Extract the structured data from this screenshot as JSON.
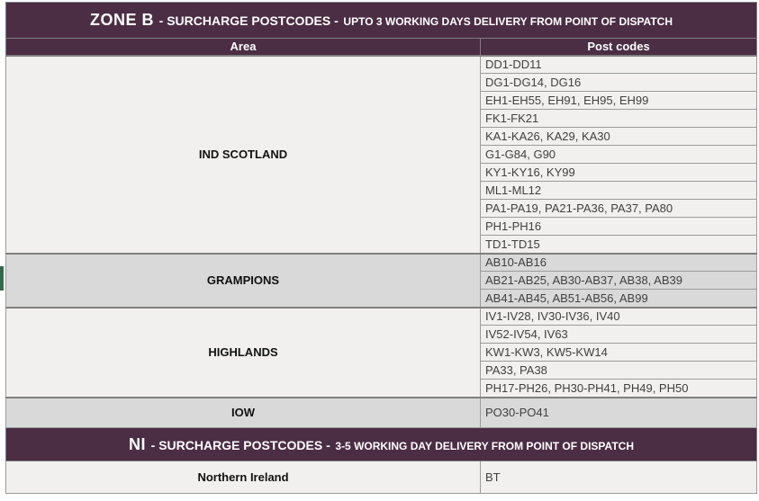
{
  "colors": {
    "header_bg": "#4b2d44",
    "shaded_row": "#d9d9d9",
    "light_row": "#f1f0ee",
    "grid": "#9b9b9b",
    "heavy_grid": "#7f7f7f",
    "green_marker": "#35684b",
    "body_text": "#404040"
  },
  "zone_b": {
    "zone": "ZONE B",
    "title": "- SURCHARGE POSTCODES -",
    "subtitle": "UPTO 3 WORKING DAYS DELIVERY FROM POINT OF DISPATCH",
    "columns": {
      "area": "Area",
      "postcodes": "Post codes"
    },
    "groups": [
      {
        "area": "IND SCOTLAND",
        "rows": [
          "DD1-DD11",
          "DG1-DG14, DG16",
          "EH1-EH55, EH91, EH95, EH99",
          "FK1-FK21",
          "KA1-KA26, KA29, KA30",
          "G1-G84, G90",
          "KY1-KY16, KY99",
          "ML1-ML12",
          "PA1-PA19, PA21-PA36, PA37, PA80",
          "PH1-PH16",
          "TD1-TD15"
        ]
      },
      {
        "area": "GRAMPIONS",
        "rows": [
          "AB10-AB16",
          "AB21-AB25, AB30-AB37, AB38, AB39",
          "AB41-AB45, AB51-AB56, AB99"
        ]
      },
      {
        "area": "HIGHLANDS",
        "rows": [
          "IV1-IV28, IV30-IV36, IV40",
          "IV52-IV54, IV63",
          "KW1-KW3, KW5-KW14",
          "PA33, PA38",
          "PH17-PH26, PH30-PH41, PH49, PH50"
        ]
      },
      {
        "area": "IOW",
        "rows": [
          "PO30-PO41"
        ]
      }
    ]
  },
  "ni": {
    "zone": "NI",
    "title": "-  SURCHARGE POSTCODES -",
    "subtitle": "3-5 WORKING DAY DELIVERY FROM POINT OF DISPATCH",
    "groups": [
      {
        "area": "Northern Ireland",
        "rows": [
          "BT"
        ]
      }
    ]
  }
}
